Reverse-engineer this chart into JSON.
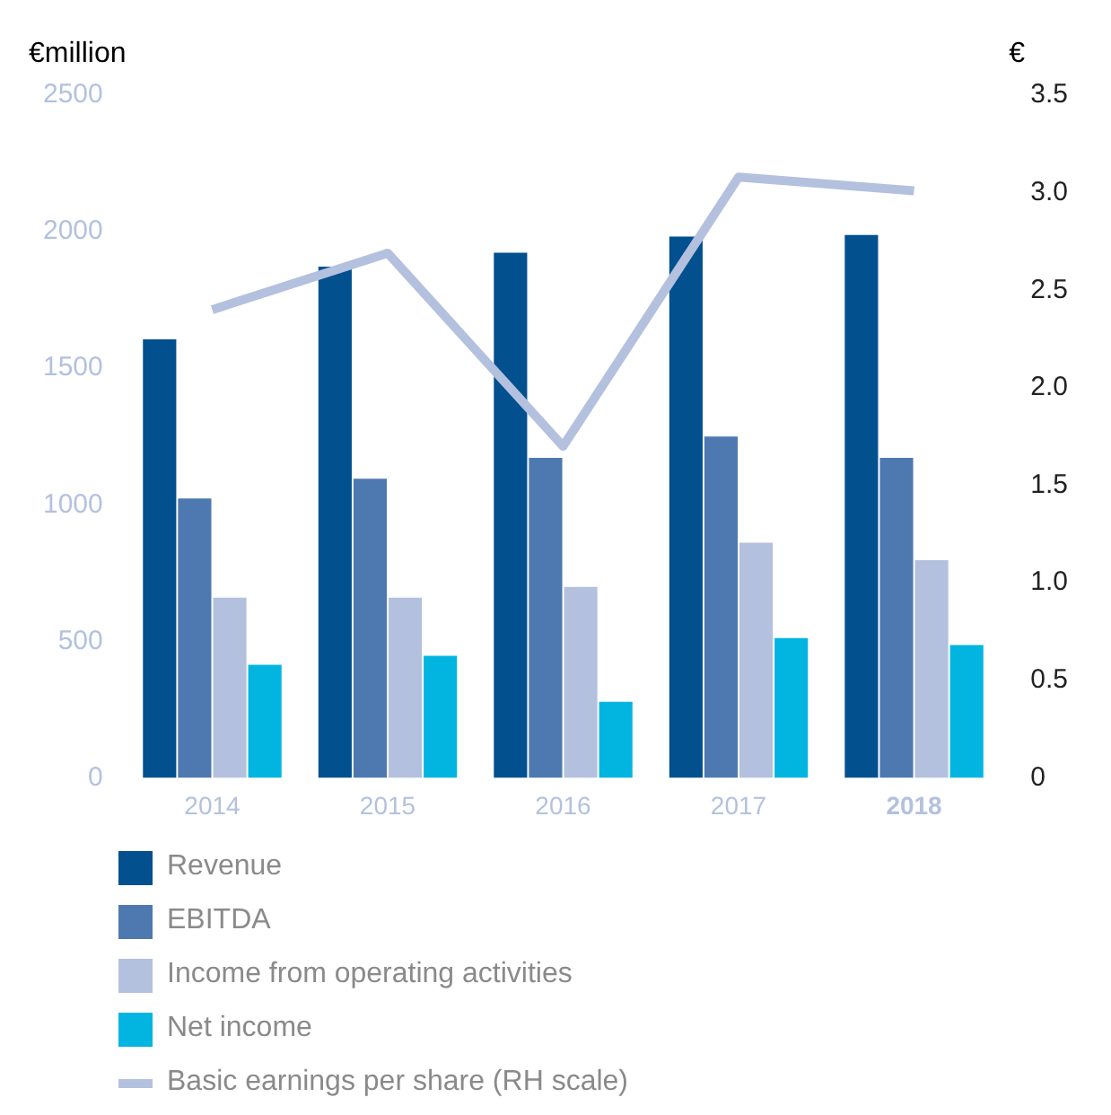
{
  "chart_data": {
    "type": "bar",
    "ylabel": "€million",
    "y2label": "€",
    "categories": [
      "2014",
      "2015",
      "2016",
      "2017",
      "2018"
    ],
    "series": [
      {
        "name": "Revenue",
        "color": "#03508f",
        "values": [
          1606,
          1872,
          1923,
          1982,
          1988
        ]
      },
      {
        "name": "EBITDA",
        "color": "#4e79b0",
        "values": [
          1023,
          1095,
          1172,
          1250,
          1172
        ]
      },
      {
        "name": "Income from operating activities",
        "color": "#b3c1de",
        "values": [
          660,
          660,
          699,
          861,
          797
        ]
      },
      {
        "name": "Net income",
        "color": "#02b5e0",
        "values": [
          414,
          447,
          278,
          512,
          486
        ]
      },
      {
        "name": "Basic earnings per share (RH scale)",
        "type": "line",
        "axis": "y2",
        "color": "#b3c1de",
        "values": [
          2.4,
          2.69,
          1.7,
          3.08,
          3.01
        ]
      }
    ],
    "ylim": [
      0,
      2500
    ],
    "yticks": [
      0,
      500,
      1000,
      1500,
      2000,
      2500
    ],
    "y2lim": [
      0,
      3.5
    ],
    "y2ticks": [
      0,
      0.5,
      {
        "value": 1,
        "label": "1.0"
      },
      1.5,
      {
        "value": 2,
        "label": "2.0"
      },
      2.5,
      {
        "value": 3,
        "label": "3.0"
      },
      3.5
    ],
    "grid": false,
    "legend": "bottom",
    "marker": "none",
    "line_style": "solid"
  }
}
